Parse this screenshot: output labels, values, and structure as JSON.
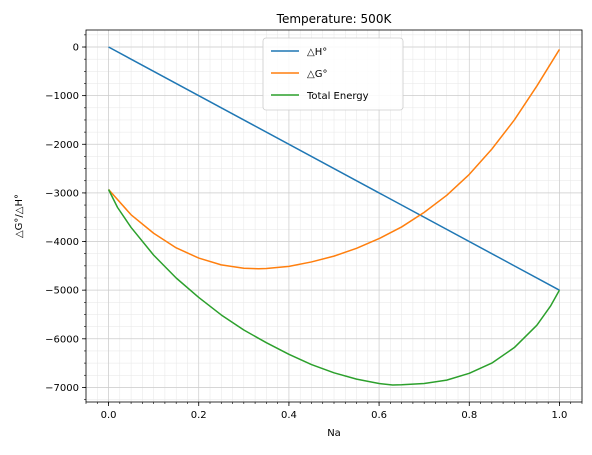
{
  "chart_data": {
    "type": "line",
    "title": "Temperature: 500K",
    "xlabel": "Na",
    "ylabel": "△G°/△H°",
    "xlim": [
      -0.05,
      1.05
    ],
    "ylim": [
      -7300,
      350
    ],
    "xticks": [
      0.0,
      0.2,
      0.4,
      0.6,
      0.8,
      1.0
    ],
    "xtick_labels": [
      "0.0",
      "0.2",
      "0.4",
      "0.6",
      "0.8",
      "1.0"
    ],
    "yticks": [
      0,
      -1000,
      -2000,
      -3000,
      -4000,
      -5000,
      -6000,
      -7000
    ],
    "ytick_labels": [
      "0",
      "−1000",
      "−2000",
      "−3000",
      "−4000",
      "−5000",
      "−6000",
      "−7000"
    ],
    "grid": true,
    "minor_grid": true,
    "legend_position": "top-center",
    "series": [
      {
        "name": "△H°",
        "color": "#1f77b4",
        "x": [
          0.0,
          1.0
        ],
        "y": [
          0,
          -5000
        ]
      },
      {
        "name": "△G°",
        "color": "#ff7f0e",
        "x": [
          0.0,
          0.05,
          0.1,
          0.15,
          0.2,
          0.25,
          0.3,
          0.333,
          0.35,
          0.4,
          0.45,
          0.5,
          0.55,
          0.6,
          0.65,
          0.7,
          0.75,
          0.8,
          0.85,
          0.9,
          0.95,
          1.0
        ],
        "y": [
          -2930,
          -3450,
          -3830,
          -4130,
          -4340,
          -4480,
          -4550,
          -4560,
          -4555,
          -4510,
          -4420,
          -4300,
          -4140,
          -3940,
          -3700,
          -3400,
          -3050,
          -2620,
          -2100,
          -1500,
          -800,
          -50
        ]
      },
      {
        "name": "Total Energy",
        "color": "#2ca02c",
        "x": [
          0.0,
          0.02,
          0.05,
          0.1,
          0.15,
          0.2,
          0.25,
          0.3,
          0.35,
          0.4,
          0.45,
          0.5,
          0.55,
          0.6,
          0.63,
          0.65,
          0.7,
          0.75,
          0.8,
          0.85,
          0.9,
          0.95,
          0.98,
          1.0
        ],
        "y": [
          -2930,
          -3300,
          -3710,
          -4280,
          -4750,
          -5150,
          -5510,
          -5820,
          -6080,
          -6320,
          -6530,
          -6700,
          -6830,
          -6920,
          -6950,
          -6945,
          -6920,
          -6850,
          -6710,
          -6500,
          -6180,
          -5720,
          -5330,
          -5000
        ]
      }
    ]
  }
}
